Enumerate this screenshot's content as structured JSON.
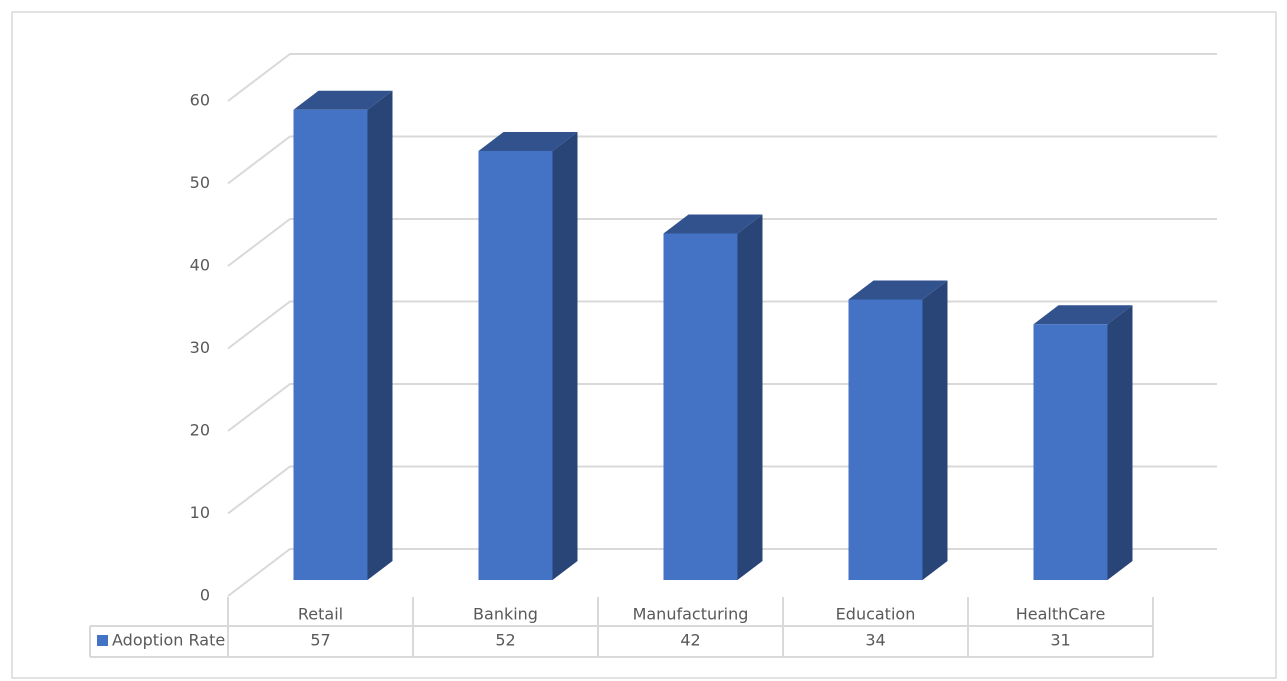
{
  "chart_data": {
    "type": "bar3d",
    "categories": [
      "Retail",
      "Banking",
      "Manufacturing",
      "Education",
      "HealthCare"
    ],
    "series": [
      {
        "name": "Adoption Rate",
        "color": "#4472c4",
        "values": [
          57,
          52,
          42,
          34,
          31
        ]
      }
    ],
    "ylim": [
      0,
      60
    ],
    "yticks": [
      0,
      10,
      20,
      30,
      40,
      50,
      60
    ],
    "grid": true,
    "data_table": true
  }
}
